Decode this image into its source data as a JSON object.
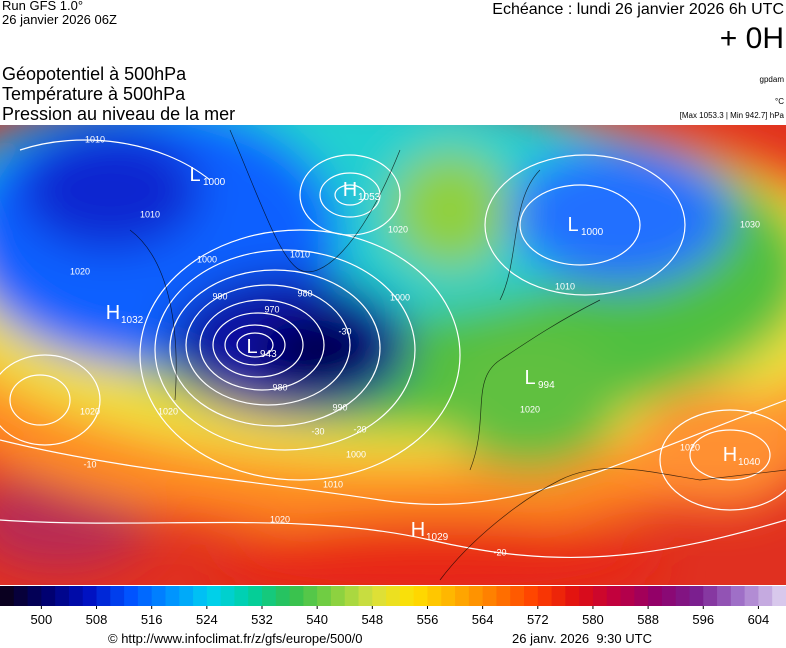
{
  "header": {
    "run": "Run GFS 1.0°",
    "date": "26 janvier 2026 06Z",
    "echeance": "Echéance : lundi 26 janvier 2026 6h UTC",
    "offset": "+ 0H",
    "title1": "Géopotentiel à 500hPa",
    "title2": "Température à 500hPa",
    "title3": "Pression au niveau de la mer",
    "unit1": "gpdam",
    "unit2": "°C",
    "extremes": "[Max 1053.3 | Min 942.7] hPa"
  },
  "centers": [
    {
      "letter": "L",
      "value": "1000"
    },
    {
      "letter": "H",
      "value": "1053"
    },
    {
      "letter": "L",
      "value": "1000"
    },
    {
      "letter": "H",
      "value": "1032"
    },
    {
      "letter": "L",
      "value": "943"
    },
    {
      "letter": "L",
      "value": "994"
    },
    {
      "letter": "H",
      "value": "1040"
    },
    {
      "letter": "H",
      "value": "1029"
    }
  ],
  "contour_labels": [
    "1010",
    "1010",
    "1020",
    "1000",
    "990",
    "970",
    "980",
    "1000",
    "980",
    "990",
    "1000",
    "1010",
    "1020",
    "1020",
    "1010",
    "1020",
    "1020",
    "1030",
    "1010",
    "1020",
    "1020",
    "-30",
    "-30",
    "-20",
    "-10",
    "-20"
  ],
  "colorbar": {
    "lim": [
      494,
      608
    ],
    "step": 2,
    "ticks": [
      500,
      508,
      516,
      524,
      532,
      540,
      548,
      556,
      564,
      572,
      580,
      588,
      596,
      604
    ],
    "stops": [
      "#0a0020",
      "#000070",
      "#0010c0",
      "#0050ff",
      "#0090ff",
      "#00d0f0",
      "#00d0a0",
      "#30c050",
      "#80d040",
      "#d8e040",
      "#ffe000",
      "#ffb000",
      "#ff7a00",
      "#ff4000",
      "#e01010",
      "#c00040",
      "#90006a",
      "#7a2090",
      "#a070c8",
      "#d8c8ec"
    ]
  },
  "footer": {
    "url": "© http://www.infoclimat.fr/z/gfs/europe/500/0",
    "time": "26 janv. 2026  9:30 UTC"
  }
}
